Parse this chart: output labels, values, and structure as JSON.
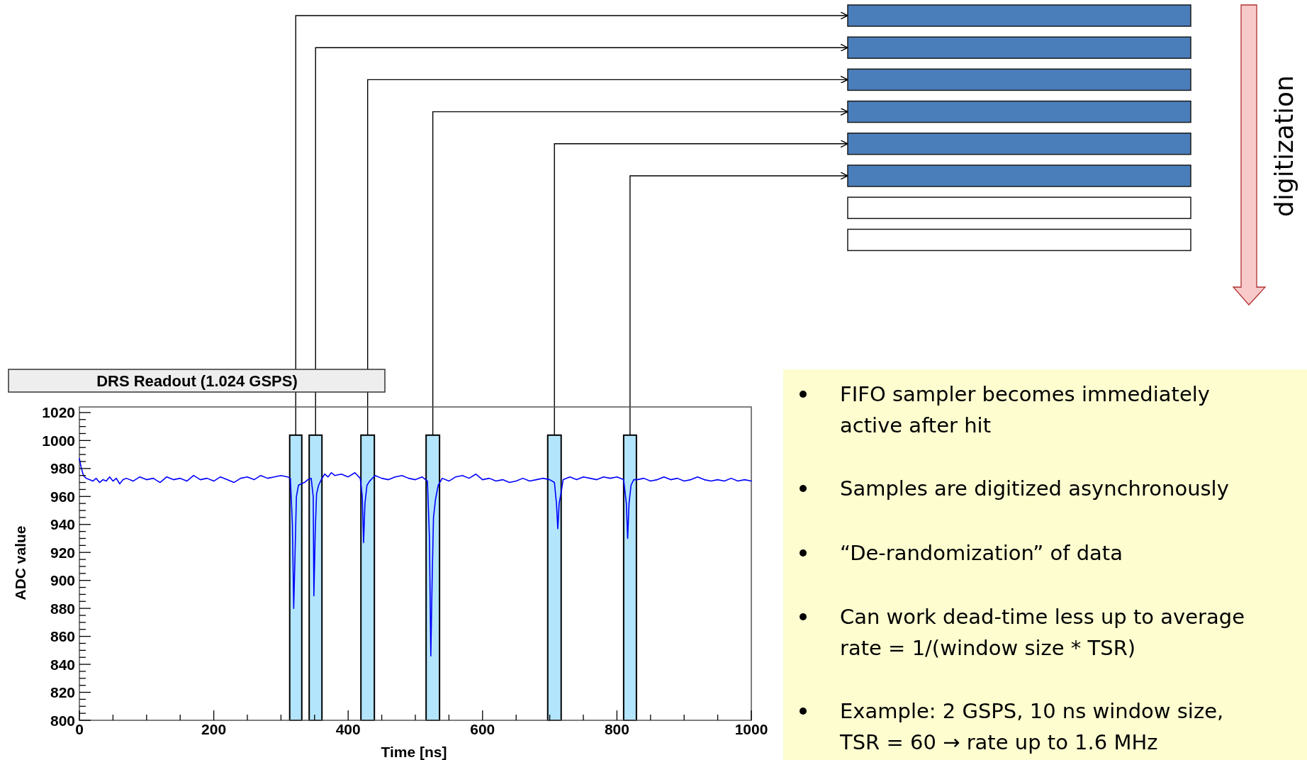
{
  "chart_data": {
    "type": "line",
    "title": "DRS Readout (1.024 GSPS)",
    "xlabel": "Time [ns]",
    "ylabel": "ADC value",
    "annotations": [
      "digitization",
      "FIFO sampler becomes immediately active after hit",
      "Samples are digitized asynchronously",
      "“De-randomization” of data",
      "Can work dead-time less up to average rate = 1/(window size * TSR)",
      "Example: 2 GSPS, 10 ns window size, TSR = 60 → rate up to 1.6 MHz"
    ],
    "xlim": [
      0,
      1000
    ],
    "ylim": [
      800,
      1024
    ],
    "xticks": [
      0,
      {
        "value": 50,
        "label": null
      },
      {
        "value": 100,
        "label": null
      },
      {
        "value": 150,
        "label": null
      },
      200,
      {
        "value": 250,
        "label": null
      },
      {
        "value": 300,
        "label": null
      },
      {
        "value": 350,
        "label": null
      },
      400,
      {
        "value": 450,
        "label": null
      },
      {
        "value": 500,
        "label": null
      },
      {
        "value": 550,
        "label": null
      },
      600,
      {
        "value": 650,
        "label": null
      },
      {
        "value": 700,
        "label": null
      },
      {
        "value": 750,
        "label": null
      },
      800,
      {
        "value": 850,
        "label": null
      },
      {
        "value": 900,
        "label": null
      },
      {
        "value": 950,
        "label": null
      },
      1000
    ],
    "yticks": [
      800,
      {
        "value": 805,
        "label": null
      },
      {
        "value": 810,
        "label": null
      },
      {
        "value": 815,
        "label": null
      },
      820,
      {
        "value": 825,
        "label": null
      },
      {
        "value": 830,
        "label": null
      },
      {
        "value": 835,
        "label": null
      },
      840,
      {
        "value": 845,
        "label": null
      },
      {
        "value": 850,
        "label": null
      },
      {
        "value": 855,
        "label": null
      },
      860,
      {
        "value": 865,
        "label": null
      },
      {
        "value": 870,
        "label": null
      },
      {
        "value": 875,
        "label": null
      },
      880,
      {
        "value": 885,
        "label": null
      },
      {
        "value": 890,
        "label": null
      },
      {
        "value": 895,
        "label": null
      },
      900,
      {
        "value": 905,
        "label": null
      },
      {
        "value": 910,
        "label": null
      },
      {
        "value": 915,
        "label": null
      },
      920,
      {
        "value": 925,
        "label": null
      },
      {
        "value": 930,
        "label": null
      },
      {
        "value": 935,
        "label": null
      },
      940,
      {
        "value": 945,
        "label": null
      },
      {
        "value": 950,
        "label": null
      },
      {
        "value": 955,
        "label": null
      },
      960,
      {
        "value": 965,
        "label": null
      },
      {
        "value": 970,
        "label": null
      },
      {
        "value": 975,
        "label": null
      },
      980,
      {
        "value": 985,
        "label": null
      },
      {
        "value": 990,
        "label": null
      },
      {
        "value": 995,
        "label": null
      },
      1000,
      {
        "value": 1005,
        "label": null
      },
      {
        "value": 1010,
        "label": null
      },
      {
        "value": 1015,
        "label": null
      },
      1020
    ],
    "bands": [
      {
        "axis": "x",
        "from": 313,
        "to": 331,
        "color": "#b3e5fc"
      },
      {
        "axis": "x",
        "from": 342,
        "to": 361,
        "color": "#b3e5fc"
      },
      {
        "axis": "x",
        "from": 419,
        "to": 439,
        "color": "#b3e5fc"
      },
      {
        "axis": "x",
        "from": 516,
        "to": 536,
        "color": "#b3e5fc"
      },
      {
        "axis": "x",
        "from": 697,
        "to": 717,
        "color": "#b3e5fc"
      },
      {
        "axis": "x",
        "from": 810,
        "to": 829,
        "color": "#b3e5fc"
      }
    ],
    "series": [
      {
        "color": "#0000ff",
        "x": [
          0,
          3,
          6,
          10,
          15,
          20,
          25,
          30,
          35,
          40,
          45,
          50,
          55,
          60,
          65,
          70,
          80,
          90,
          100,
          110,
          120,
          130,
          140,
          150,
          160,
          170,
          180,
          190,
          200,
          210,
          220,
          230,
          240,
          250,
          260,
          270,
          280,
          290,
          300,
          310,
          314,
          317,
          319,
          321,
          323,
          326,
          330,
          335,
          340,
          345,
          348,
          349,
          351,
          353,
          356,
          360,
          365,
          370,
          375,
          380,
          390,
          400,
          410,
          418,
          421,
          423,
          425,
          428,
          432,
          440,
          450,
          460,
          470,
          480,
          490,
          500,
          510,
          518,
          521,
          523,
          525,
          527,
          530,
          534,
          540,
          550,
          560,
          570,
          580,
          590,
          600,
          610,
          620,
          630,
          640,
          650,
          660,
          670,
          680,
          690,
          700,
          707,
          710,
          712,
          714,
          717,
          720,
          730,
          740,
          750,
          760,
          770,
          780,
          790,
          800,
          810,
          814,
          816,
          818,
          821,
          825,
          830,
          840,
          850,
          860,
          870,
          880,
          890,
          900,
          910,
          920,
          930,
          940,
          950,
          960,
          970,
          980,
          990,
          1000
        ],
        "values": [
          987,
          980,
          975,
          973,
          972,
          971,
          973,
          970,
          972,
          971,
          974,
          971,
          973,
          969,
          972,
          973,
          971,
          974,
          972,
          973,
          970,
          974,
          972,
          973,
          971,
          975,
          972,
          973,
          971,
          974,
          972,
          970,
          973,
          974,
          972,
          975,
          973,
          974,
          975,
          974,
          973,
          940,
          880,
          920,
          960,
          968,
          969,
          970,
          972,
          973,
          960,
          889,
          935,
          962,
          968,
          972,
          976,
          974,
          977,
          975,
          976,
          974,
          977,
          973,
          960,
          927,
          955,
          968,
          971,
          975,
          973,
          972,
          974,
          975,
          973,
          972,
          974,
          971,
          930,
          846,
          900,
          945,
          958,
          968,
          973,
          971,
          974,
          975,
          973,
          976,
          972,
          973,
          971,
          972,
          970,
          971,
          973,
          971,
          972,
          973,
          972,
          970,
          955,
          937,
          955,
          963,
          972,
          974,
          972,
          974,
          973,
          972,
          974,
          973,
          974,
          972,
          955,
          930,
          955,
          968,
          972,
          972,
          973,
          971,
          972,
          974,
          972,
          973,
          971,
          972,
          974,
          972,
          971,
          972,
          971,
          973,
          971,
          972,
          971
        ]
      }
    ]
  }
}
